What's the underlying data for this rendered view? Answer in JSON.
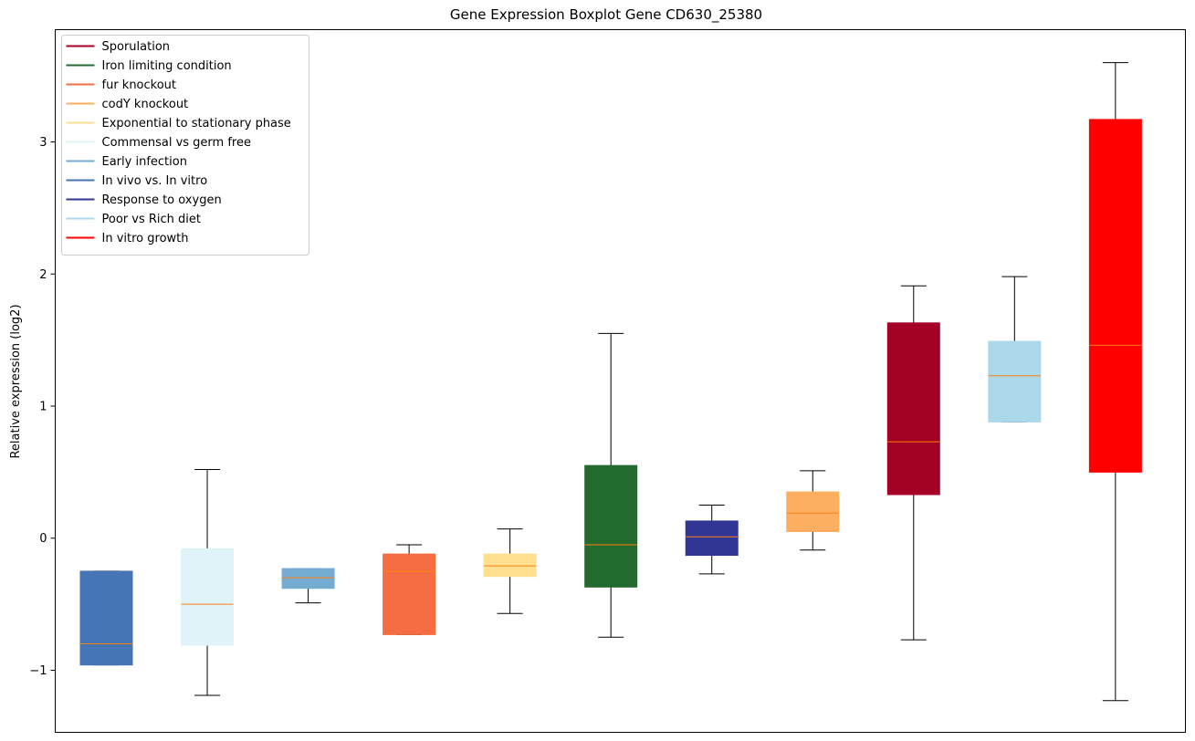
{
  "chart_data": {
    "type": "boxplot",
    "title": "Gene Expression Boxplot Gene CD630_25380",
    "xlabel": "",
    "ylabel": "Relative expression (log2)",
    "ylim": [
      -1.47,
      3.85
    ],
    "yticks": [
      -1,
      0,
      1,
      2,
      3
    ],
    "ytick_labels": [
      "−1",
      "0",
      "1",
      "2",
      "3"
    ],
    "median_color": "#ff7f0e",
    "whisker_color": "#000000",
    "legend": {
      "placement": "upper-left",
      "entries": [
        {
          "label": "Sporulation",
          "color": "#a50026"
        },
        {
          "label": "Iron limiting condition",
          "color": "#236a2e"
        },
        {
          "label": "fur knockout",
          "color": "#f46d43"
        },
        {
          "label": "codY knockout",
          "color": "#fdae61"
        },
        {
          "label": "Exponential to stationary phase",
          "color": "#fee090"
        },
        {
          "label": "Commensal vs germ free",
          "color": "#e0f3f8"
        },
        {
          "label": "Early infection",
          "color": "#74add1"
        },
        {
          "label": "In vivo vs. In vitro",
          "color": "#4575b4"
        },
        {
          "label": "Response to oxygen",
          "color": "#313695"
        },
        {
          "label": "Poor vs Rich diet",
          "color": "#abd9e9"
        },
        {
          "label": "In vitro growth",
          "color": "#ff0000"
        }
      ]
    },
    "boxes": [
      {
        "condition": "In vivo vs. In vitro",
        "color": "#4575b4",
        "whislo": -0.96,
        "q1": -0.96,
        "med": -0.8,
        "q3": -0.25,
        "whishi": -0.25
      },
      {
        "condition": "Commensal vs germ free",
        "color": "#e0f3f8",
        "whislo": -1.19,
        "q1": -0.81,
        "med": -0.5,
        "q3": -0.08,
        "whishi": 0.52
      },
      {
        "condition": "Early infection",
        "color": "#74add1",
        "whislo": -0.49,
        "q1": -0.38,
        "med": -0.3,
        "q3": -0.23,
        "whishi": -0.23
      },
      {
        "condition": "fur knockout",
        "color": "#f46d43",
        "whislo": -0.73,
        "q1": -0.73,
        "med": -0.25,
        "q3": -0.12,
        "whishi": -0.05
      },
      {
        "condition": "Exponential to stationary phase",
        "color": "#fee090",
        "whislo": -0.57,
        "q1": -0.29,
        "med": -0.21,
        "q3": -0.12,
        "whishi": 0.07
      },
      {
        "condition": "Iron limiting condition",
        "color": "#236a2e",
        "whislo": -0.75,
        "q1": -0.37,
        "med": -0.05,
        "q3": 0.55,
        "whishi": 1.55
      },
      {
        "condition": "Response to oxygen",
        "color": "#313695",
        "whislo": -0.27,
        "q1": -0.13,
        "med": 0.01,
        "q3": 0.13,
        "whishi": 0.25
      },
      {
        "condition": "codY knockout",
        "color": "#fdae61",
        "whislo": -0.09,
        "q1": 0.05,
        "med": 0.19,
        "q3": 0.35,
        "whishi": 0.51
      },
      {
        "condition": "Sporulation",
        "color": "#a50026",
        "whislo": -0.77,
        "q1": 0.33,
        "med": 0.73,
        "q3": 1.63,
        "whishi": 1.91
      },
      {
        "condition": "Poor vs Rich diet",
        "color": "#abd9e9",
        "whislo": 0.88,
        "q1": 0.88,
        "med": 1.23,
        "q3": 1.49,
        "whishi": 1.98
      },
      {
        "condition": "In vitro growth",
        "color": "#ff0000",
        "whislo": -1.23,
        "q1": 0.5,
        "med": 1.46,
        "q3": 3.17,
        "whishi": 3.6
      }
    ]
  }
}
